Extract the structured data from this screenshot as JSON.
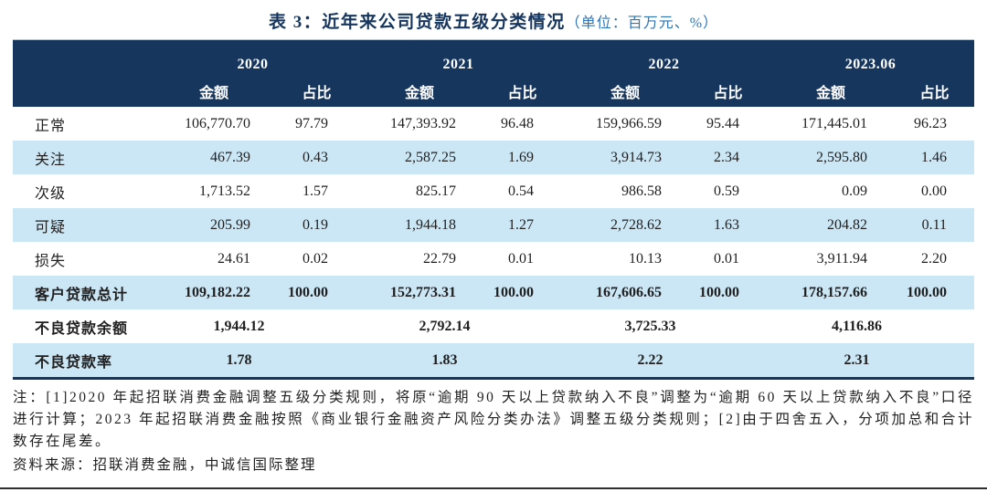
{
  "title": {
    "main": "表 3：近年来公司贷款五级分类情况",
    "unit": "（单位：百万元、%）"
  },
  "table": {
    "years": [
      "2020",
      "2021",
      "2022",
      "2023.06"
    ],
    "sub_headers": {
      "amount": "金额",
      "share": "占比"
    },
    "rows": [
      {
        "label": "正常",
        "values": [
          "106,770.70",
          "97.79",
          "147,393.92",
          "96.48",
          "159,966.59",
          "95.44",
          "171,445.01",
          "96.23"
        ]
      },
      {
        "label": "关注",
        "values": [
          "467.39",
          "0.43",
          "2,587.25",
          "1.69",
          "3,914.73",
          "2.34",
          "2,595.80",
          "1.46"
        ]
      },
      {
        "label": "次级",
        "values": [
          "1,713.52",
          "1.57",
          "825.17",
          "0.54",
          "986.58",
          "0.59",
          "0.09",
          "0.00"
        ]
      },
      {
        "label": "可疑",
        "values": [
          "205.99",
          "0.19",
          "1,944.18",
          "1.27",
          "2,728.62",
          "1.63",
          "204.82",
          "0.11"
        ]
      },
      {
        "label": "损失",
        "values": [
          "24.61",
          "0.02",
          "22.79",
          "0.01",
          "10.13",
          "0.01",
          "3,911.94",
          "2.20"
        ]
      },
      {
        "label": "客户贷款总计",
        "values": [
          "109,182.22",
          "100.00",
          "152,773.31",
          "100.00",
          "167,606.65",
          "100.00",
          "178,157.66",
          "100.00"
        ]
      }
    ],
    "span_rows": [
      {
        "label": "不良贷款余额",
        "values": [
          "1,944.12",
          "2,792.14",
          "3,725.33",
          "4,116.86"
        ]
      },
      {
        "label": "不良贷款率",
        "values": [
          "1.78",
          "1.83",
          "2.22",
          "2.31"
        ]
      }
    ]
  },
  "notes": {
    "note": "注：[1]2020 年起招联消费金融调整五级分类规则，将原“逾期 90 天以上贷款纳入不良”调整为“逾期 60 天以上贷款纳入不良”口径进行计算；2023 年起招联消费金融按照《商业银行金融资产风险分类办法》调整五级分类规则；[2]由于四舍五入，分项加总和合计数存在尾差。",
    "source": "资料来源：招联消费金融，中诚信国际整理"
  },
  "colors": {
    "header_bg": "#17365D",
    "stripe_bg": "#CBE6F5",
    "title_navy": "#17365D",
    "unit_blue": "#2E75B6",
    "bottom_rule": "#2e2e2e"
  }
}
